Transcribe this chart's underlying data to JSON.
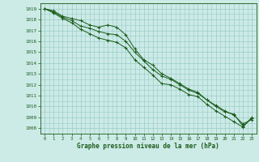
{
  "xlabel": "Graphe pression niveau de la mer (hPa)",
  "bg_color": "#cceae6",
  "grid_color": "#99ccc8",
  "line_color": "#1a5c1a",
  "marker_color": "#1a5c1a",
  "xlim": [
    -0.5,
    23.5
  ],
  "ylim": [
    1007.5,
    1019.5
  ],
  "yticks": [
    1008,
    1009,
    1010,
    1011,
    1012,
    1013,
    1014,
    1015,
    1016,
    1017,
    1018,
    1019
  ],
  "xticks": [
    0,
    1,
    2,
    3,
    4,
    5,
    6,
    7,
    8,
    9,
    10,
    11,
    12,
    13,
    14,
    15,
    16,
    17,
    18,
    19,
    20,
    21,
    22,
    23
  ],
  "series": [
    [
      1019.0,
      1018.8,
      1018.3,
      1018.1,
      1017.9,
      1017.5,
      1017.3,
      1017.5,
      1017.3,
      1016.6,
      1015.3,
      1014.3,
      1013.8,
      1013.0,
      1012.6,
      1012.1,
      1011.6,
      1011.3,
      1010.6,
      1010.1,
      1009.6,
      1009.2,
      1008.4,
      1008.8
    ],
    [
      1019.0,
      1018.7,
      1018.2,
      1017.9,
      1017.4,
      1017.2,
      1016.9,
      1016.7,
      1016.6,
      1016.0,
      1015.0,
      1014.2,
      1013.4,
      1012.8,
      1012.5,
      1012.0,
      1011.5,
      1011.2,
      1010.6,
      1010.0,
      1009.5,
      1009.3,
      1008.2,
      1008.9
    ],
    [
      1019.0,
      1018.6,
      1018.1,
      1017.7,
      1017.1,
      1016.7,
      1016.3,
      1016.1,
      1015.9,
      1015.4,
      1014.3,
      1013.6,
      1012.9,
      1012.1,
      1012.0,
      1011.6,
      1011.1,
      1010.9,
      1010.2,
      1009.6,
      1009.1,
      1008.6,
      1008.1,
      1009.0
    ]
  ]
}
